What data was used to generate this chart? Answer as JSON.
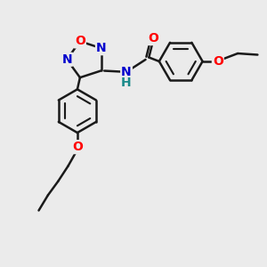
{
  "bg_color": "#ebebeb",
  "bond_color": "#1a1a1a",
  "bond_width": 1.8,
  "atom_colors": {
    "O": "#ff0000",
    "N": "#0000cd",
    "H": "#1a8a8a",
    "C": "#1a1a1a"
  },
  "font_size": 10,
  "fig_size": [
    3.0,
    3.0
  ],
  "dpi": 100,
  "xlim": [
    0,
    10
  ],
  "ylim": [
    0,
    10
  ]
}
